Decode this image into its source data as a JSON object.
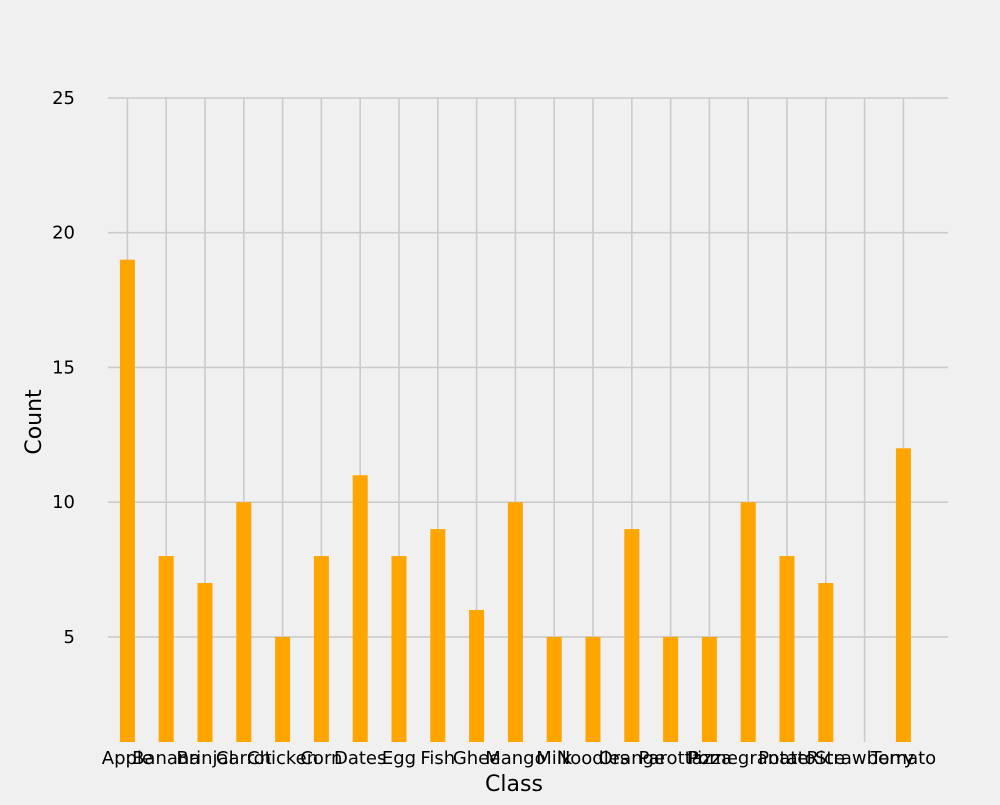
{
  "chart_data": {
    "type": "bar",
    "title": "",
    "xlabel": "Class",
    "ylabel": "Count",
    "categories": [
      "Apple",
      "Banana",
      "Brinjal",
      "Carrot",
      "Chicken",
      "Corn",
      "Dates",
      "Egg",
      "Fish",
      "Ghee",
      "Mango",
      "Milk",
      "Noodles",
      "Orange",
      "Parotta",
      "Pizza",
      "Pomegranate",
      "Potato",
      "Rice",
      "Strawberry",
      "Tomato"
    ],
    "values": [
      19,
      8,
      7,
      10,
      5,
      8,
      11,
      8,
      9,
      6,
      10,
      5,
      5,
      9,
      5,
      5,
      10,
      8,
      7,
      null,
      12
    ],
    "ylim": [
      1.1,
      25
    ],
    "yticks": [
      5,
      10,
      15,
      20,
      25
    ],
    "grid": true,
    "bar_color": "#ffa500",
    "background_color": "#f0f0f0",
    "grid_color": "#cbcbcb"
  }
}
